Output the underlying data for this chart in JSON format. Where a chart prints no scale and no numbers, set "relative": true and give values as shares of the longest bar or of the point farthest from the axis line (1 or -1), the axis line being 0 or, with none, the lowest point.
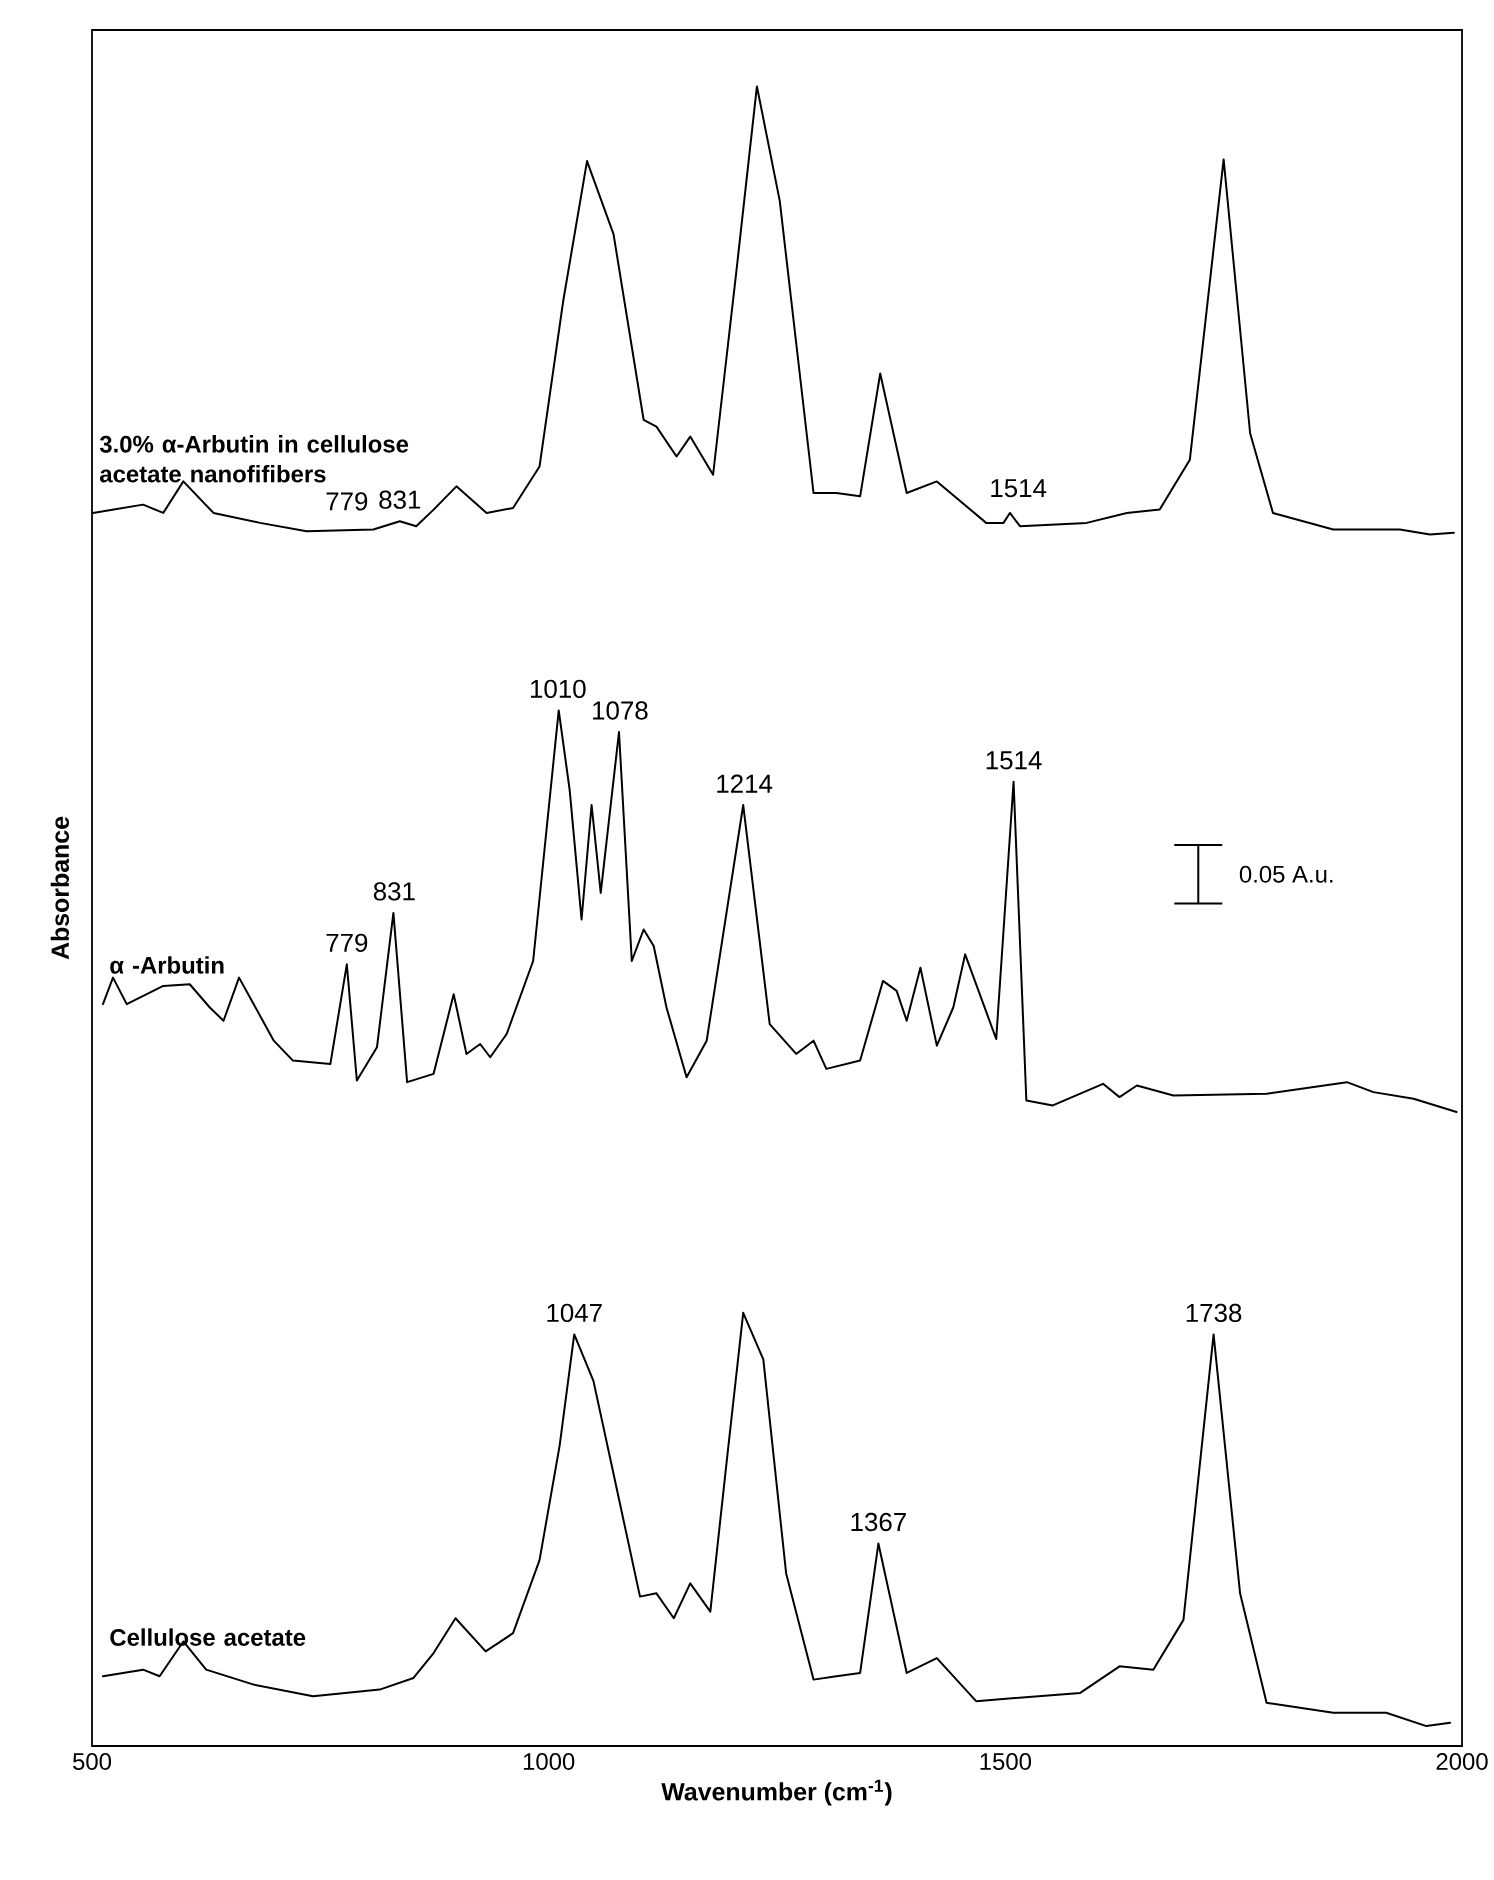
{
  "chart_data": {
    "type": "line",
    "relative": true,
    "xlabel": "Wavenumber (cm$^{-1}$)",
    "ylabel": "Absorbance",
    "xlim": [
      500,
      2000
    ],
    "xticks": [
      500,
      1000,
      1500,
      2000
    ],
    "series": [
      {
        "name": "3.0% α-Arbutin in cellulose acetate nanofifibers",
        "color": "#000000",
        "x": [
          501,
          556,
          578,
          600,
          633,
          684,
          735,
          808,
          837,
          855,
          874,
          899,
          932,
          961,
          990,
          1016,
          1042,
          1071,
          1104,
          1118,
          1140,
          1155,
          1180,
          1206,
          1228,
          1253,
          1290,
          1315,
          1341,
          1363,
          1392,
          1425,
          1479,
          1498,
          1505,
          1516,
          1589,
          1633,
          1669,
          1702,
          1739,
          1768,
          1793,
          1859,
          1932,
          1965,
          1991
        ],
        "values": [
          0.743,
          0.748,
          0.743,
          0.762,
          0.743,
          0.737,
          0.732,
          0.733,
          0.738,
          0.735,
          0.745,
          0.759,
          0.743,
          0.746,
          0.771,
          0.871,
          0.955,
          0.911,
          0.799,
          0.795,
          0.777,
          0.789,
          0.766,
          0.891,
          1.0,
          0.931,
          0.755,
          0.755,
          0.753,
          0.827,
          0.755,
          0.762,
          0.737,
          0.737,
          0.743,
          0.735,
          0.737,
          0.743,
          0.745,
          0.775,
          0.956,
          0.791,
          0.743,
          0.733,
          0.733,
          0.73,
          0.731
        ]
      },
      {
        "name": "α -Arbutin",
        "color": "#000000",
        "x": [
          512,
          523,
          538,
          578,
          607,
          629,
          644,
          661,
          699,
          720,
          761,
          779,
          790,
          812,
          830,
          845,
          874,
          896,
          910,
          925,
          936,
          954,
          983,
          998,
          1011,
          1023,
          1036,
          1047,
          1057,
          1077,
          1091,
          1104,
          1115,
          1129,
          1151,
          1173,
          1213,
          1242,
          1271,
          1290,
          1304,
          1341,
          1366,
          1381,
          1392,
          1407,
          1425,
          1443,
          1456,
          1490,
          1509,
          1523,
          1552,
          1607,
          1625,
          1644,
          1684,
          1786,
          1874,
          1903,
          1947,
          1994
        ],
        "values": [
          0.447,
          0.463,
          0.447,
          0.458,
          0.459,
          0.445,
          0.437,
          0.463,
          0.425,
          0.413,
          0.411,
          0.471,
          0.401,
          0.421,
          0.502,
          0.4,
          0.405,
          0.453,
          0.417,
          0.423,
          0.415,
          0.429,
          0.473,
          0.554,
          0.624,
          0.576,
          0.498,
          0.567,
          0.514,
          0.611,
          0.473,
          0.492,
          0.482,
          0.445,
          0.403,
          0.425,
          0.567,
          0.435,
          0.417,
          0.425,
          0.408,
          0.413,
          0.461,
          0.455,
          0.437,
          0.469,
          0.422,
          0.445,
          0.477,
          0.426,
          0.581,
          0.389,
          0.386,
          0.399,
          0.391,
          0.398,
          0.392,
          0.393,
          0.4,
          0.394,
          0.39,
          0.382
        ]
      },
      {
        "name": "Cellulose acetate",
        "color": "#000000",
        "x": [
          512,
          556,
          574,
          600,
          625,
          677,
          742,
          815,
          852,
          874,
          898,
          931,
          961,
          990,
          1012,
          1028,
          1049,
          1071,
          1100,
          1118,
          1137,
          1155,
          1177,
          1195,
          1213,
          1235,
          1260,
          1290,
          1315,
          1341,
          1361,
          1392,
          1425,
          1468,
          1582,
          1625,
          1662,
          1695,
          1728,
          1757,
          1786,
          1859,
          1917,
          1961,
          1987
        ],
        "values": [
          0.042,
          0.046,
          0.042,
          0.063,
          0.046,
          0.037,
          0.03,
          0.034,
          0.041,
          0.056,
          0.077,
          0.057,
          0.068,
          0.112,
          0.181,
          0.248,
          0.22,
          0.164,
          0.09,
          0.092,
          0.077,
          0.098,
          0.081,
          0.172,
          0.261,
          0.233,
          0.104,
          0.04,
          0.042,
          0.044,
          0.122,
          0.044,
          0.053,
          0.027,
          0.032,
          0.048,
          0.046,
          0.076,
          0.248,
          0.092,
          0.026,
          0.02,
          0.02,
          0.012,
          0.014
        ]
      }
    ],
    "annotations": [
      {
        "text": "779",
        "x": 779,
        "y": 0.737
      },
      {
        "text": "831",
        "x": 837,
        "y": 0.738
      },
      {
        "text": "1514",
        "x": 1514,
        "y": 0.745
      },
      {
        "text": "779",
        "x": 779,
        "y": 0.471
      },
      {
        "text": "831",
        "x": 831,
        "y": 0.502
      },
      {
        "text": "1010",
        "x": 1010,
        "y": 0.624
      },
      {
        "text": "1078",
        "x": 1078,
        "y": 0.611
      },
      {
        "text": "1214",
        "x": 1214,
        "y": 0.567
      },
      {
        "text": "1514",
        "x": 1509,
        "y": 0.581
      },
      {
        "text": "1047",
        "x": 1028,
        "y": 0.248
      },
      {
        "text": "1367",
        "x": 1361,
        "y": 0.122
      },
      {
        "text": "1738",
        "x": 1728,
        "y": 0.248
      },
      "0.05 A.u."
    ]
  }
}
